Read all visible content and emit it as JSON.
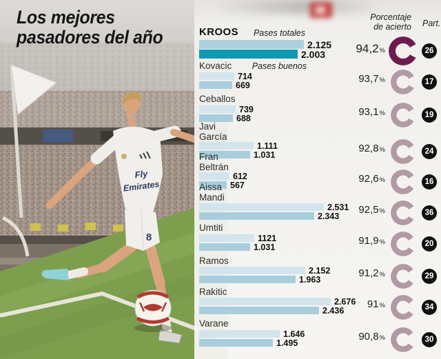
{
  "title": {
    "line1": "Los mejores",
    "line2": "pasadores del año",
    "full": "Los mejores pasadores del año"
  },
  "headers": {
    "pases_totales": "Pases totales",
    "pases_buenos": "Pases buenos",
    "porcentaje_line1": "Porcentaje",
    "porcentaje_line2": "de acierto",
    "part": "Part.",
    "percent_sign": "%"
  },
  "photo": {
    "jersey_line1": "Fly",
    "jersey_line2": "Emirates",
    "shorts_number": "8"
  },
  "colors": {
    "bar_totales": "#d3e4ed",
    "bar_buenos": "#a8cede",
    "bar_totales_highlight": "#aed0de",
    "bar_buenos_highlight": "#0d9ab4",
    "donut": "#b29aa5",
    "donut_highlight": "#6e1c4e",
    "badge_bg": "#111111",
    "badge_text": "#ffffff"
  },
  "chart_data": {
    "type": "bar",
    "title": "Los mejores pasadores del año",
    "orientation": "horizontal",
    "series_labels": [
      "Pases totales",
      "Pases buenos"
    ],
    "extra_columns": [
      "Porcentaje de acierto",
      "Part."
    ],
    "players": [
      {
        "name": "KROOS",
        "totales": 2125,
        "totales_label": "2.125",
        "buenos": 2003,
        "buenos_label": "2.003",
        "pct": 94.2,
        "pct_label": "94,2",
        "part": "26",
        "highlight": true
      },
      {
        "name": "Kovacic",
        "totales": 714,
        "totales_label": "714",
        "buenos": 669,
        "buenos_label": "669",
        "pct": 93.7,
        "pct_label": "93,7",
        "part": "17",
        "highlight": false
      },
      {
        "name": "Ceballos",
        "totales": 739,
        "totales_label": "739",
        "buenos": 688,
        "buenos_label": "688",
        "pct": 93.1,
        "pct_label": "93,1",
        "part": "19",
        "highlight": false
      },
      {
        "name": "Javi\nGarcía",
        "totales": 1111,
        "totales_label": "1.111",
        "buenos": 1031,
        "buenos_label": "1.031",
        "pct": 92.8,
        "pct_label": "92,8",
        "part": "24",
        "highlight": false
      },
      {
        "name": "Fran\nBeltrán",
        "totales": 612,
        "totales_label": "612",
        "buenos": 567,
        "buenos_label": "567",
        "pct": 92.6,
        "pct_label": "92,6",
        "part": "16",
        "highlight": false
      },
      {
        "name": "Aissa\nMandi",
        "totales": 2531,
        "totales_label": "2.531",
        "buenos": 2343,
        "buenos_label": "2.343",
        "pct": 92.5,
        "pct_label": "92,5",
        "part": "36",
        "highlight": false
      },
      {
        "name": "Umtiti",
        "totales": 1121,
        "totales_label": "1121",
        "buenos": 1031,
        "buenos_label": "1.031",
        "pct": 91.9,
        "pct_label": "91,9",
        "part": "20",
        "highlight": false
      },
      {
        "name": "Ramos",
        "totales": 2152,
        "totales_label": "2.152",
        "buenos": 1963,
        "buenos_label": "1.963",
        "pct": 91.2,
        "pct_label": "91,2",
        "part": "29",
        "highlight": false
      },
      {
        "name": "Rakitic",
        "totales": 2676,
        "totales_label": "2.676",
        "buenos": 2436,
        "buenos_label": "2.436",
        "pct": 91.0,
        "pct_label": "91",
        "part": "34",
        "highlight": false
      },
      {
        "name": "Varane",
        "totales": 1646,
        "totales_label": "1.646",
        "buenos": 1495,
        "buenos_label": "1.495",
        "pct": 90.8,
        "pct_label": "90,8",
        "part": "30",
        "highlight": false
      }
    ]
  }
}
